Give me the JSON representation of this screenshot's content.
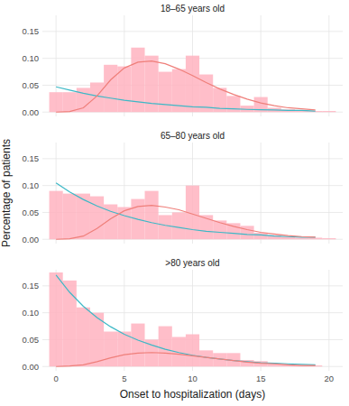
{
  "chart_data": [
    {
      "type": "histogram",
      "title": "18–65 years old",
      "bins": [
        -0.5,
        0.5,
        1.5,
        2.5,
        3.5,
        4.5,
        5.5,
        6.5,
        7.5,
        8.5,
        9.5,
        10.5,
        11.5,
        12.5,
        13.5,
        14.5,
        15.5,
        16.5,
        17.5,
        18.5,
        19.5,
        20.5
      ],
      "values": [
        0.037,
        0.037,
        0.045,
        0.055,
        0.088,
        0.085,
        0.12,
        0.105,
        0.075,
        0.08,
        0.105,
        0.07,
        0.045,
        0.03,
        0.012,
        0.028,
        0.008,
        0.005,
        0.003,
        0.002,
        0.002
      ],
      "color": "#ffb3bf",
      "series": [
        {
          "type": "line",
          "color": "#3cb8c6",
          "x": [
            0,
            1,
            2,
            3,
            4,
            5,
            6,
            7,
            8,
            9,
            10,
            11,
            12,
            13,
            14,
            15,
            16,
            17,
            18,
            19
          ],
          "values": [
            0.047,
            0.041,
            0.035,
            0.03,
            0.026,
            0.022,
            0.019,
            0.016,
            0.014,
            0.012,
            0.01,
            0.009,
            0.007,
            0.006,
            0.005,
            0.0045,
            0.004,
            0.003,
            0.003,
            0.002
          ]
        },
        {
          "type": "line",
          "color": "#ef7f7a",
          "x": [
            0,
            1,
            2,
            3,
            4,
            5,
            6,
            7,
            8,
            9,
            10,
            11,
            12,
            13,
            14,
            15,
            16,
            17,
            18,
            19
          ],
          "values": [
            0,
            0.001,
            0.008,
            0.03,
            0.06,
            0.082,
            0.093,
            0.095,
            0.09,
            0.08,
            0.068,
            0.055,
            0.043,
            0.033,
            0.024,
            0.017,
            0.012,
            0.008,
            0.006,
            0.004
          ]
        }
      ],
      "xlim": [
        -1,
        21
      ],
      "ylim": [
        -0.008,
        0.18
      ],
      "xticks": [
        0,
        5,
        10,
        15,
        20
      ],
      "yticks": [
        {
          "value": 0,
          "label": "0.00"
        },
        {
          "value": 0.05,
          "label": "0.05"
        },
        {
          "value": 0.1,
          "label": "0.10"
        },
        {
          "value": 0.15,
          "label": "0.15"
        }
      ],
      "grid": true,
      "tick_labels": "y"
    },
    {
      "type": "histogram",
      "title": "65–80 years old",
      "y_label": "Percentage of patients",
      "bins": [
        -0.5,
        0.5,
        1.5,
        2.5,
        3.5,
        4.5,
        5.5,
        6.5,
        7.5,
        8.5,
        9.5,
        10.5,
        11.5,
        12.5,
        13.5,
        14.5,
        15.5,
        16.5,
        17.5,
        18.5,
        19.5,
        20.5
      ],
      "values": [
        0.09,
        0.085,
        0.085,
        0.08,
        0.065,
        0.06,
        0.075,
        0.09,
        0.045,
        0.05,
        0.1,
        0.045,
        0.035,
        0.03,
        0.025,
        0.012,
        0.008,
        0.005,
        0.003,
        0.003,
        0.002
      ],
      "color": "#ffb3bf",
      "series": [
        {
          "type": "line",
          "color": "#3cb8c6",
          "x": [
            0,
            1,
            2,
            3,
            4,
            5,
            6,
            7,
            8,
            9,
            10,
            11,
            12,
            13,
            14,
            15,
            16,
            17,
            18,
            19
          ],
          "values": [
            0.105,
            0.088,
            0.074,
            0.062,
            0.052,
            0.044,
            0.037,
            0.031,
            0.026,
            0.022,
            0.018,
            0.015,
            0.013,
            0.011,
            0.009,
            0.008,
            0.006,
            0.005,
            0.004,
            0.004
          ]
        },
        {
          "type": "line",
          "color": "#ef7f7a",
          "x": [
            0,
            1,
            2,
            3,
            4,
            5,
            6,
            7,
            8,
            9,
            10,
            11,
            12,
            13,
            14,
            15,
            16,
            17,
            18,
            19
          ],
          "values": [
            0,
            0.001,
            0.006,
            0.02,
            0.038,
            0.053,
            0.061,
            0.063,
            0.06,
            0.055,
            0.047,
            0.039,
            0.031,
            0.024,
            0.018,
            0.013,
            0.01,
            0.007,
            0.005,
            0.004
          ]
        }
      ],
      "xlim": [
        -1,
        21
      ],
      "ylim": [
        -0.008,
        0.18
      ],
      "xticks": [
        0,
        5,
        10,
        15,
        20
      ],
      "yticks": [
        {
          "value": 0,
          "label": "0.00"
        },
        {
          "value": 0.05,
          "label": "0.05"
        },
        {
          "value": 0.1,
          "label": "0.10"
        },
        {
          "value": 0.15,
          "label": "0.15"
        }
      ],
      "grid": true,
      "tick_labels": "y"
    },
    {
      "type": "histogram",
      "title": ">80 years old",
      "x_label": "Onset to hospitalization (days)",
      "bins": [
        -0.5,
        0.5,
        1.5,
        2.5,
        3.5,
        4.5,
        5.5,
        6.5,
        7.5,
        8.5,
        9.5,
        10.5,
        11.5,
        12.5,
        13.5,
        14.5,
        15.5,
        16.5,
        17.5,
        18.5,
        19.5,
        20.5
      ],
      "values": [
        0.175,
        0.16,
        0.11,
        0.1,
        0.065,
        0.065,
        0.08,
        0.05,
        0.075,
        0.055,
        0.06,
        0.03,
        0.025,
        0.025,
        0.012,
        0.01,
        0.005,
        0.004,
        0.002,
        0.002,
        0
      ],
      "color": "#ffb3bf",
      "series": [
        {
          "type": "line",
          "color": "#3cb8c6",
          "x": [
            0,
            1,
            2,
            3,
            4,
            5,
            6,
            7,
            8,
            9,
            10,
            11,
            12,
            13,
            14,
            15,
            16,
            17,
            18,
            19
          ],
          "values": [
            0.17,
            0.138,
            0.112,
            0.091,
            0.074,
            0.06,
            0.049,
            0.04,
            0.032,
            0.026,
            0.021,
            0.017,
            0.014,
            0.011,
            0.009,
            0.007,
            0.006,
            0.005,
            0.004,
            0.003
          ]
        },
        {
          "type": "line",
          "color": "#ef7f7a",
          "x": [
            0,
            1,
            2,
            3,
            4,
            5,
            6,
            7,
            8,
            9,
            10,
            11,
            12,
            13,
            14,
            15,
            16,
            17,
            18,
            19
          ],
          "values": [
            0,
            0.001,
            0.003,
            0.009,
            0.016,
            0.022,
            0.025,
            0.026,
            0.025,
            0.023,
            0.02,
            0.017,
            0.014,
            0.011,
            0.008,
            0.006,
            0.005,
            0.003,
            0.002,
            0.002
          ]
        }
      ],
      "xlim": [
        -1,
        21
      ],
      "ylim": [
        -0.008,
        0.18
      ],
      "xticks": [
        0,
        5,
        10,
        15,
        20
      ],
      "yticks": [
        {
          "value": 0,
          "label": "0.00"
        },
        {
          "value": 0.05,
          "label": "0.05"
        },
        {
          "value": 0.1,
          "label": "0.10"
        },
        {
          "value": 0.15,
          "label": "0.15"
        }
      ],
      "grid": true
    }
  ]
}
